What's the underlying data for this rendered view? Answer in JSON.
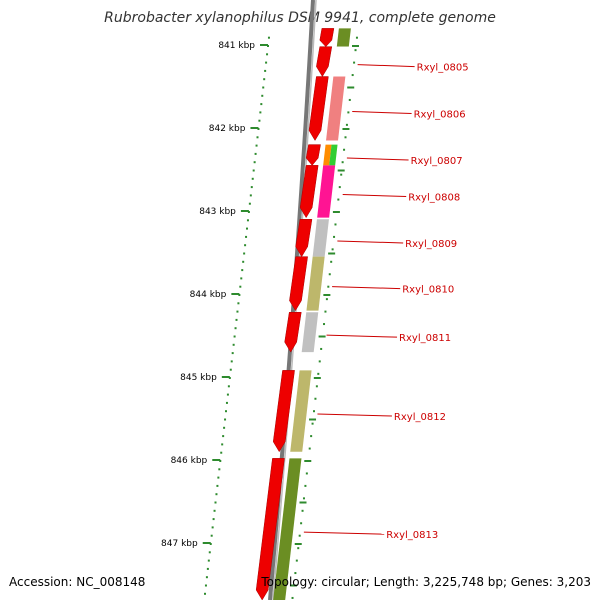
{
  "title": "Rubrobacter xylanophilus DSM 9941, complete genome",
  "accession_text": "Accession: NC_008148",
  "topology_text": "Topology: circular; Length: 3,225,748 bp; Genes: 3,203",
  "colors": {
    "ruler": "#2e8b2e",
    "backbone": "#777777",
    "gene_arrow": "#ee0000",
    "label": "#cc0000"
  },
  "ruler": {
    "unit": "kbp",
    "ticks": [
      {
        "kbp": 841,
        "label": "841 kbp"
      },
      {
        "kbp": 842,
        "label": "842 kbp"
      },
      {
        "kbp": 843,
        "label": "843 kbp"
      },
      {
        "kbp": 844,
        "label": "844 kbp"
      },
      {
        "kbp": 845,
        "label": "845 kbp"
      },
      {
        "kbp": 846,
        "label": "846 kbp"
      },
      {
        "kbp": 847,
        "label": "847 kbp"
      }
    ]
  },
  "genes": [
    {
      "label": "",
      "start": 840.8,
      "end": 841.02,
      "color": "#6b8e23"
    },
    {
      "label": "Rxyl_0805",
      "start": 841.02,
      "end": 841.38,
      "color": "#ffffff"
    },
    {
      "label": "Rxyl_0806",
      "start": 841.38,
      "end": 842.15,
      "color": "#f08080"
    },
    {
      "label": "Rxyl_0807",
      "start": 842.2,
      "end": 842.45,
      "color": "#ff8c00",
      "color2": "#32cd32"
    },
    {
      "label": "Rxyl_0808",
      "start": 842.45,
      "end": 843.08,
      "color": "#ff1493"
    },
    {
      "label": "Rxyl_0809",
      "start": 843.1,
      "end": 843.55,
      "color": "#c0c0c0"
    },
    {
      "label": "Rxyl_0810",
      "start": 843.55,
      "end": 844.2,
      "color": "#bdb76b"
    },
    {
      "label": "Rxyl_0811",
      "start": 844.22,
      "end": 844.7,
      "color": "#c0c0c0"
    },
    {
      "label": "Rxyl_0812",
      "start": 844.92,
      "end": 845.9,
      "color": "#bdb76b"
    },
    {
      "label": "Rxyl_0813",
      "start": 845.98,
      "end": 847.7,
      "color": "#6b8e23"
    }
  ]
}
